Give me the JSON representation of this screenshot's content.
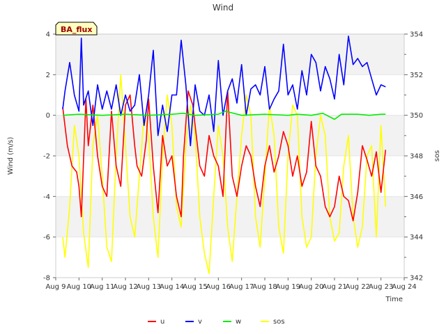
{
  "chart_data": {
    "type": "line",
    "title": "Wind",
    "xlabel": "Time",
    "ylabel_left": "Wind (m/s)",
    "ylabel_right": "sos",
    "badge": "BA_flux",
    "x_ticks": [
      "Aug 9",
      "Aug 10",
      "Aug 11",
      "Aug 12",
      "Aug 13",
      "Aug 14",
      "Aug 15",
      "Aug 16",
      "Aug 17",
      "Aug 18",
      "Aug 19",
      "Aug 20",
      "Aug 21",
      "Aug 22",
      "Aug 23",
      "Aug 24"
    ],
    "xlim": [
      0,
      15
    ],
    "ylim_left": [
      -8,
      4
    ],
    "ylim_right": [
      342,
      354
    ],
    "y_ticks_left": [
      -8,
      -6,
      -4,
      -2,
      0,
      2,
      4
    ],
    "y_ticks_right": [
      342,
      344,
      346,
      348,
      350,
      352,
      354
    ],
    "grid_bands": true,
    "legend_position": "bottom",
    "series": [
      {
        "name": "u",
        "color": "#ff0000",
        "axis": "left",
        "x": [
          0.3,
          0.5,
          0.7,
          0.9,
          1.0,
          1.1,
          1.3,
          1.4,
          1.6,
          1.8,
          2.0,
          2.2,
          2.4,
          2.6,
          2.8,
          3.0,
          3.2,
          3.4,
          3.5,
          3.7,
          3.9,
          4.0,
          4.2,
          4.4,
          4.6,
          4.8,
          5.0,
          5.2,
          5.4,
          5.5,
          5.7,
          5.9,
          6.0,
          6.2,
          6.4,
          6.6,
          6.8,
          7.0,
          7.2,
          7.4,
          7.6,
          7.8,
          8.0,
          8.2,
          8.4,
          8.6,
          8.8,
          9.0,
          9.2,
          9.4,
          9.6,
          9.8,
          10.0,
          10.2,
          10.4,
          10.6,
          10.8,
          11.0,
          11.2,
          11.4,
          11.6,
          11.8,
          12.0,
          12.2,
          12.4,
          12.6,
          12.8,
          13.0,
          13.2,
          13.4,
          13.6,
          13.8,
          14.0,
          14.2
        ],
        "y": [
          0.4,
          -1.5,
          -2.5,
          -2.8,
          -3.5,
          -5.0,
          0.8,
          -1.5,
          0.5,
          -2.0,
          -3.5,
          -4.0,
          0.2,
          -2.5,
          -3.5,
          0.5,
          1.0,
          -1.5,
          -2.5,
          -3.0,
          -1.2,
          0.8,
          -2.5,
          -4.8,
          -1.0,
          -2.5,
          -2.0,
          -4.0,
          -5.0,
          -2.0,
          1.2,
          0.5,
          -0.5,
          -2.5,
          -3.0,
          -1.0,
          -2.0,
          -2.5,
          -4.0,
          1.2,
          -3.0,
          -4.0,
          -2.5,
          -1.5,
          -2.0,
          -3.5,
          -4.5,
          -2.5,
          -1.5,
          -2.8,
          -2.0,
          -0.8,
          -1.5,
          -3.0,
          -2.0,
          -3.5,
          -2.8,
          -0.3,
          -2.5,
          -3.0,
          -4.5,
          -5.0,
          -4.5,
          -3.0,
          -4.0,
          -4.2,
          -5.2,
          -3.8,
          -1.5,
          -2.2,
          -3.0,
          -1.8,
          -3.8,
          -1.7
        ]
      },
      {
        "name": "v",
        "color": "#0000ff",
        "axis": "left",
        "x": [
          0.3,
          0.4,
          0.6,
          0.8,
          1.0,
          1.1,
          1.2,
          1.4,
          1.6,
          1.8,
          2.0,
          2.2,
          2.4,
          2.6,
          2.8,
          3.0,
          3.2,
          3.4,
          3.6,
          3.8,
          4.0,
          4.2,
          4.4,
          4.6,
          4.8,
          5.0,
          5.2,
          5.4,
          5.6,
          5.8,
          6.0,
          6.2,
          6.4,
          6.6,
          6.8,
          7.0,
          7.2,
          7.4,
          7.6,
          7.8,
          8.0,
          8.2,
          8.4,
          8.6,
          8.8,
          9.0,
          9.2,
          9.4,
          9.6,
          9.8,
          10.0,
          10.2,
          10.4,
          10.6,
          10.8,
          11.0,
          11.2,
          11.4,
          11.6,
          11.8,
          12.0,
          12.2,
          12.4,
          12.6,
          12.8,
          13.0,
          13.2,
          13.4,
          13.6,
          13.8,
          14.0,
          14.2
        ],
        "y": [
          0.3,
          1.2,
          2.6,
          1.0,
          0.2,
          3.8,
          0.5,
          1.2,
          -0.5,
          1.5,
          0.3,
          1.2,
          0.3,
          1.5,
          0.0,
          1.0,
          0.2,
          0.5,
          2.0,
          -0.5,
          1.0,
          3.2,
          -1.0,
          0.5,
          -0.8,
          1.0,
          1.0,
          3.7,
          1.5,
          -1.5,
          1.5,
          0.2,
          0.0,
          1.0,
          -0.8,
          2.7,
          0.0,
          1.2,
          1.8,
          0.6,
          2.5,
          0.0,
          1.3,
          1.5,
          1.0,
          2.4,
          0.3,
          0.8,
          1.2,
          3.5,
          1.0,
          1.5,
          0.3,
          2.2,
          1.0,
          3.0,
          2.6,
          1.2,
          2.4,
          1.8,
          0.8,
          3.0,
          1.5,
          3.9,
          2.5,
          2.8,
          2.4,
          2.6,
          1.8,
          1.0,
          1.5,
          1.4
        ]
      },
      {
        "name": "w",
        "color": "#00ee00",
        "axis": "left",
        "x": [
          0.3,
          1.0,
          2.0,
          3.0,
          4.0,
          5.0,
          5.5,
          6.0,
          7.0,
          7.3,
          8.0,
          9.0,
          10.0,
          10.4,
          11.0,
          11.5,
          12.0,
          12.3,
          12.6,
          13.0,
          13.5,
          14.0,
          14.2
        ],
        "y": [
          0.0,
          0.05,
          0.0,
          0.05,
          0.0,
          0.05,
          0.1,
          0.0,
          0.05,
          0.2,
          0.0,
          0.05,
          0.0,
          0.05,
          0.0,
          0.1,
          -0.2,
          0.05,
          0.05,
          0.05,
          0.0,
          0.05,
          0.05
        ]
      },
      {
        "name": "sos",
        "color": "#ffff00",
        "axis": "right",
        "x": [
          0.3,
          0.4,
          0.6,
          0.8,
          1.0,
          1.2,
          1.4,
          1.6,
          1.8,
          2.0,
          2.2,
          2.4,
          2.6,
          2.8,
          3.0,
          3.2,
          3.4,
          3.6,
          3.8,
          4.0,
          4.2,
          4.4,
          4.6,
          4.8,
          5.0,
          5.2,
          5.4,
          5.6,
          5.8,
          6.0,
          6.2,
          6.4,
          6.6,
          6.8,
          7.0,
          7.2,
          7.4,
          7.6,
          7.8,
          8.0,
          8.2,
          8.4,
          8.6,
          8.8,
          9.0,
          9.2,
          9.4,
          9.6,
          9.8,
          10.0,
          10.2,
          10.4,
          10.6,
          10.8,
          11.0,
          11.2,
          11.4,
          11.6,
          11.8,
          12.0,
          12.2,
          12.4,
          12.6,
          12.8,
          13.0,
          13.2,
          13.4,
          13.6,
          13.8,
          14.0,
          14.2
        ],
        "y": [
          344.0,
          343.0,
          345.5,
          349.5,
          348.0,
          344.2,
          342.5,
          348.5,
          350.0,
          347.0,
          343.5,
          342.8,
          348.0,
          352.0,
          348.5,
          345.0,
          344.0,
          347.0,
          350.0,
          349.0,
          345.0,
          343.0,
          348.0,
          351.0,
          349.5,
          345.5,
          344.5,
          348.5,
          350.5,
          349.0,
          345.0,
          343.2,
          342.2,
          346.0,
          349.5,
          348.0,
          344.5,
          342.8,
          346.0,
          349.0,
          351.0,
          350.0,
          345.0,
          343.5,
          347.0,
          350.5,
          349.0,
          344.5,
          343.2,
          348.0,
          350.5,
          350.0,
          345.0,
          343.5,
          344.0,
          348.0,
          350.0,
          349.0,
          345.0,
          343.8,
          344.2,
          347.5,
          349.0,
          345.0,
          343.5,
          344.5,
          348.0,
          348.5,
          344.0,
          349.5,
          345.5
        ]
      }
    ]
  }
}
